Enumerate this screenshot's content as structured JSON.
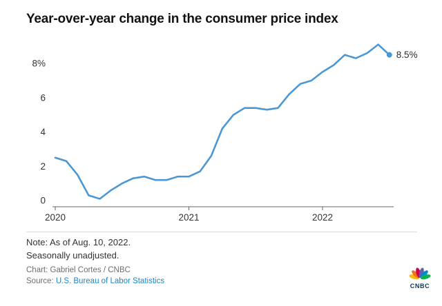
{
  "title": "Year-over-year change in the consumer price index",
  "chart_data": {
    "type": "line",
    "x": [
      "Jan 2020",
      "Feb 2020",
      "Mar 2020",
      "Apr 2020",
      "May 2020",
      "Jun 2020",
      "Jul 2020",
      "Aug 2020",
      "Sep 2020",
      "Oct 2020",
      "Nov 2020",
      "Dec 2020",
      "Jan 2021",
      "Feb 2021",
      "Mar 2021",
      "Apr 2021",
      "May 2021",
      "Jun 2021",
      "Jul 2021",
      "Aug 2021",
      "Sep 2021",
      "Oct 2021",
      "Nov 2021",
      "Dec 2021",
      "Jan 2022",
      "Feb 2022",
      "Mar 2022",
      "Apr 2022",
      "May 2022",
      "Jun 2022",
      "Jul 2022"
    ],
    "values": [
      2.5,
      2.3,
      1.5,
      0.3,
      0.1,
      0.6,
      1.0,
      1.3,
      1.4,
      1.2,
      1.2,
      1.4,
      1.4,
      1.7,
      2.6,
      4.2,
      5.0,
      5.4,
      5.4,
      5.3,
      5.4,
      6.2,
      6.8,
      7.0,
      7.5,
      7.9,
      8.5,
      8.3,
      8.6,
      9.1,
      8.5
    ],
    "title": "Year-over-year change in the consumer price index",
    "xlabel": "",
    "ylabel": "",
    "ylim": [
      0,
      9.5
    ],
    "yticks": [
      8,
      6,
      4,
      2,
      0
    ],
    "ytick_labels": [
      "8%",
      "6",
      "4",
      "2",
      "0"
    ],
    "xticks": [
      "2020",
      "2021",
      "2022"
    ],
    "end_label": "8.5%",
    "line_color": "#4a97d4",
    "grid": false,
    "legend": "none"
  },
  "footer": {
    "note_line1": "Note: As of Aug. 10, 2022.",
    "note_line2": "Seasonally unadjusted.",
    "credit": "Chart: Gabriel Cortes / CNBC",
    "source_label": "Source: ",
    "source_link": "U.S. Bureau of Labor Statistics"
  },
  "logo": {
    "name": "CNBC",
    "wordmark": "CNBC",
    "feather_colors": [
      "#fcb711",
      "#f37021",
      "#cc004c",
      "#6460aa",
      "#0089d0",
      "#0db14b"
    ]
  }
}
